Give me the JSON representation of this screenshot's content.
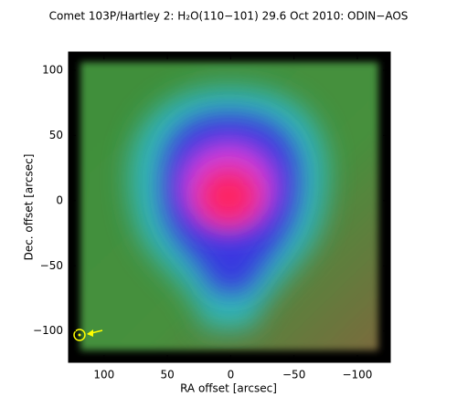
{
  "chart_data": {
    "type": "heatmap",
    "title": "Comet 103P/Hartley 2: H₂O(110−101) 29.6 Oct 2010: ODIN−AOS",
    "x_label": "RA offset [arcsec]",
    "y_label": "Dec. offset [arcsec]",
    "xlim": [
      128,
      -126
    ],
    "ylim": [
      -124,
      114
    ],
    "xticks": [
      100,
      50,
      0,
      {
        "value": -50,
        "label": "−50"
      },
      {
        "value": -100,
        "label": "−100"
      }
    ],
    "yticks": [
      {
        "value": -100,
        "label": "−100"
      },
      {
        "value": -50,
        "label": "−50"
      },
      0,
      50,
      100
    ]
  }
}
